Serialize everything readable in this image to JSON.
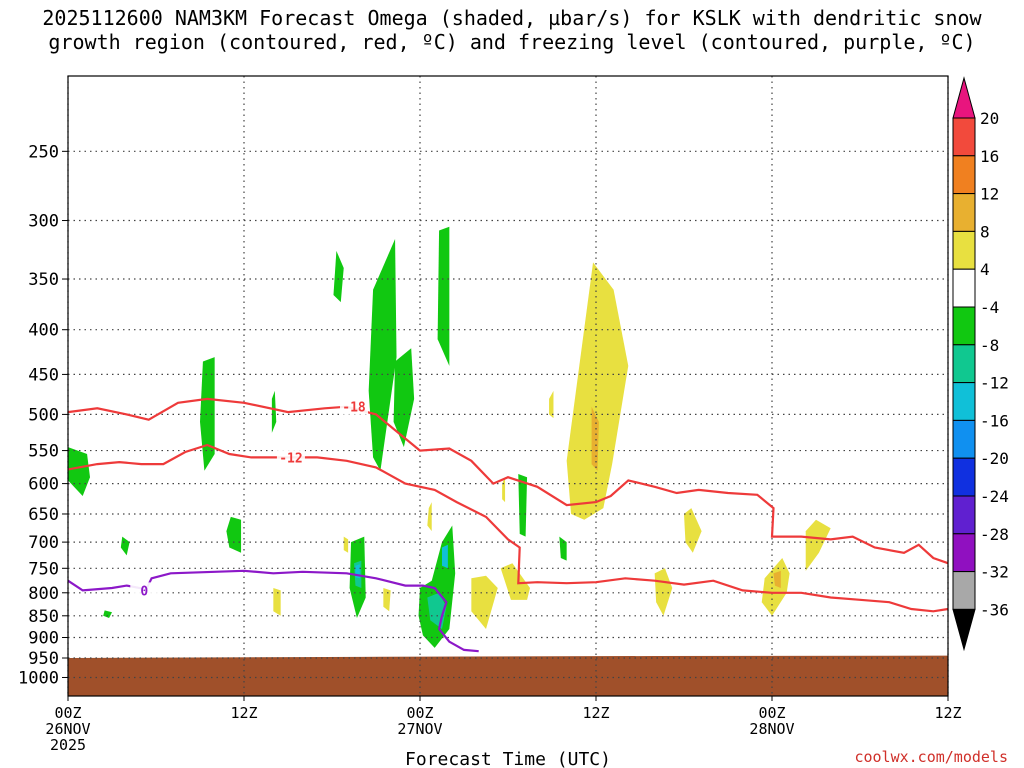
{
  "title": {
    "line1": "2025112600 NAM3KM Forecast Omega (shaded, µbar/s) for KSLK with dendritic snow",
    "line2": "growth region (contoured, red, ºC) and freezing level (contoured, purple, ºC)"
  },
  "credit": "coolwx.com/models",
  "chart_data": {
    "type": "heatmap",
    "title": "2025112600 NAM3KM Forecast Omega (shaded, µbar/s) for KSLK with dendritic snow growth region (contoured, red, ºC) and freezing level (contoured, purple, ºC)",
    "xlabel": "Forecast Time (UTC)",
    "ylabel": "",
    "y_scale": "log-pressure (hPa, inverted)",
    "xlim": [
      0,
      60
    ],
    "ylim": [
      1050,
      205
    ],
    "grid": true,
    "x_ticks": [
      {
        "x": 0,
        "label": "00Z",
        "sub1": "26NOV",
        "sub2": "2025"
      },
      {
        "x": 12,
        "label": "12Z",
        "sub1": "",
        "sub2": ""
      },
      {
        "x": 24,
        "label": "00Z",
        "sub1": "27NOV",
        "sub2": ""
      },
      {
        "x": 36,
        "label": "12Z",
        "sub1": "",
        "sub2": ""
      },
      {
        "x": 48,
        "label": "00Z",
        "sub1": "28NOV",
        "sub2": ""
      },
      {
        "x": 60,
        "label": "12Z",
        "sub1": "",
        "sub2": ""
      }
    ],
    "y_ticks": [
      250,
      300,
      350,
      400,
      450,
      500,
      550,
      600,
      650,
      700,
      750,
      800,
      850,
      900,
      950,
      1000
    ],
    "colorbar": {
      "labels": [
        "20",
        "16",
        "12",
        "8",
        "4",
        "-4",
        "-8",
        "-12",
        "-16",
        "-20",
        "-24",
        "-28",
        "-32",
        "-36"
      ],
      "colors": [
        "#e8157e",
        "#f24a3c",
        "#f08020",
        "#e8b030",
        "#e8e040",
        "#ffffff",
        "#11c811",
        "#10c890",
        "#10c0d8",
        "#1090f0",
        "#1030e0",
        "#6020d0",
        "#9010c0",
        "#a8a8a8",
        "#000000"
      ]
    },
    "terrain": {
      "color": "#a0502a",
      "surface_hpa": [
        {
          "x": 0,
          "p": 950
        },
        {
          "x": 20,
          "p": 947
        },
        {
          "x": 40,
          "p": 945
        },
        {
          "x": 60,
          "p": 944
        }
      ]
    },
    "omega_regions": [
      {
        "color": "#11c811",
        "points": [
          [
            0,
            545
          ],
          [
            1.3,
            555
          ],
          [
            1.5,
            590
          ],
          [
            1,
            620
          ],
          [
            0,
            595
          ]
        ]
      },
      {
        "color": "#11c811",
        "points": [
          [
            3.7,
            690
          ],
          [
            4.2,
            700
          ],
          [
            4,
            725
          ],
          [
            3.6,
            710
          ]
        ]
      },
      {
        "color": "#11c811",
        "points": [
          [
            2.5,
            838
          ],
          [
            3,
            842
          ],
          [
            2.8,
            855
          ],
          [
            2.4,
            850
          ]
        ]
      },
      {
        "color": "#11c811",
        "points": [
          [
            9.2,
            435
          ],
          [
            10,
            430
          ],
          [
            10,
            555
          ],
          [
            9.3,
            580
          ],
          [
            9,
            510
          ]
        ]
      },
      {
        "color": "#11c811",
        "points": [
          [
            11.1,
            655
          ],
          [
            11.8,
            660
          ],
          [
            11.8,
            720
          ],
          [
            11,
            710
          ],
          [
            10.8,
            680
          ]
        ]
      },
      {
        "color": "#11c811",
        "points": [
          [
            13.9,
            480
          ],
          [
            14.1,
            470
          ],
          [
            14.2,
            510
          ],
          [
            13.9,
            525
          ]
        ]
      },
      {
        "color": "#11c811",
        "points": [
          [
            18.3,
            325
          ],
          [
            18.8,
            340
          ],
          [
            18.6,
            372
          ],
          [
            18.1,
            365
          ]
        ]
      },
      {
        "color": "#11c811",
        "points": [
          [
            20.8,
            360
          ],
          [
            22.3,
            315
          ],
          [
            22.4,
            430
          ],
          [
            21.3,
            580
          ],
          [
            20.8,
            560
          ],
          [
            20.5,
            470
          ]
        ]
      },
      {
        "color": "#11c811",
        "points": [
          [
            22.3,
            435
          ],
          [
            23.4,
            420
          ],
          [
            23.6,
            480
          ],
          [
            22.9,
            545
          ],
          [
            22.2,
            510
          ]
        ]
      },
      {
        "color": "#11c811",
        "points": [
          [
            19.3,
            700
          ],
          [
            20.2,
            690
          ],
          [
            20.3,
            810
          ],
          [
            19.7,
            855
          ],
          [
            19.2,
            790
          ]
        ]
      },
      {
        "color": "#11c811",
        "points": [
          [
            25.3,
            308
          ],
          [
            26.0,
            305
          ],
          [
            26,
            440
          ],
          [
            25.2,
            410
          ]
        ]
      },
      {
        "color": "#11c811",
        "points": [
          [
            33.5,
            690
          ],
          [
            34,
            700
          ],
          [
            34,
            735
          ],
          [
            33.6,
            730
          ]
        ]
      },
      {
        "color": "#11c811",
        "points": [
          [
            24,
            790
          ],
          [
            24.8,
            775
          ],
          [
            25.5,
            700
          ],
          [
            26.2,
            670
          ],
          [
            26.4,
            760
          ],
          [
            26,
            880
          ],
          [
            25,
            925
          ],
          [
            24.2,
            895
          ],
          [
            23.9,
            850
          ]
        ]
      },
      {
        "color": "#11c811",
        "points": [
          [
            30.7,
            585
          ],
          [
            31.3,
            590
          ],
          [
            31.2,
            690
          ],
          [
            30.8,
            685
          ]
        ]
      },
      {
        "color": "#10c890",
        "points": [
          [
            24.5,
            810
          ],
          [
            25.3,
            800
          ],
          [
            25.8,
            830
          ],
          [
            25.5,
            880
          ],
          [
            24.7,
            860
          ]
        ]
      },
      {
        "color": "#10c890",
        "points": [
          [
            19.5,
            740
          ],
          [
            20.0,
            735
          ],
          [
            20.0,
            790
          ],
          [
            19.6,
            785
          ]
        ]
      },
      {
        "color": "#10c0d8",
        "points": [
          [
            19.6,
            745
          ],
          [
            19.9,
            742
          ],
          [
            19.9,
            770
          ],
          [
            19.6,
            768
          ]
        ]
      },
      {
        "color": "#10c0d8",
        "points": [
          [
            25.5,
            710
          ],
          [
            25.9,
            705
          ],
          [
            25.9,
            750
          ],
          [
            25.5,
            745
          ]
        ]
      },
      {
        "color": "#e8e040",
        "points": [
          [
            34,
            565
          ],
          [
            35.8,
            335
          ],
          [
            37.2,
            360
          ],
          [
            38.2,
            440
          ],
          [
            37.1,
            570
          ],
          [
            36.5,
            640
          ],
          [
            35.2,
            660
          ],
          [
            34.3,
            650
          ]
        ]
      },
      {
        "color": "#e8b030",
        "points": [
          [
            35.7,
            490
          ],
          [
            36.2,
            510
          ],
          [
            36.1,
            580
          ],
          [
            35.7,
            570
          ]
        ]
      },
      {
        "color": "#e8e040",
        "points": [
          [
            32.8,
            480
          ],
          [
            33.1,
            470
          ],
          [
            33.1,
            505
          ],
          [
            32.8,
            500
          ]
        ]
      },
      {
        "color": "#e8e040",
        "points": [
          [
            29.6,
            600
          ],
          [
            29.8,
            590
          ],
          [
            29.8,
            630
          ],
          [
            29.6,
            625
          ]
        ]
      },
      {
        "color": "#e8e040",
        "points": [
          [
            24.6,
            640
          ],
          [
            24.8,
            630
          ],
          [
            24.8,
            680
          ],
          [
            24.5,
            670
          ]
        ]
      },
      {
        "color": "#e8e040",
        "points": [
          [
            27.5,
            770
          ],
          [
            28.5,
            765
          ],
          [
            29.3,
            790
          ],
          [
            28.5,
            880
          ],
          [
            27.5,
            840
          ]
        ]
      },
      {
        "color": "#e8e040",
        "points": [
          [
            29.5,
            750
          ],
          [
            30.3,
            740
          ],
          [
            31.5,
            790
          ],
          [
            31.3,
            815
          ],
          [
            30.2,
            815
          ]
        ]
      },
      {
        "color": "#e8e040",
        "points": [
          [
            42,
            650
          ],
          [
            42.5,
            640
          ],
          [
            43.2,
            680
          ],
          [
            42.6,
            720
          ],
          [
            42.1,
            700
          ]
        ]
      },
      {
        "color": "#e8e040",
        "points": [
          [
            40,
            760
          ],
          [
            40.7,
            750
          ],
          [
            41.2,
            790
          ],
          [
            40.6,
            850
          ],
          [
            40.1,
            820
          ]
        ]
      },
      {
        "color": "#e8e040",
        "points": [
          [
            47.5,
            770
          ],
          [
            48.7,
            730
          ],
          [
            49.2,
            760
          ],
          [
            49.0,
            800
          ],
          [
            48.0,
            850
          ],
          [
            47.3,
            820
          ]
        ]
      },
      {
        "color": "#e8b030",
        "points": [
          [
            48.1,
            760
          ],
          [
            48.6,
            755
          ],
          [
            48.6,
            790
          ],
          [
            48.2,
            785
          ]
        ]
      },
      {
        "color": "#e8e040",
        "points": [
          [
            50.3,
            680
          ],
          [
            51,
            660
          ],
          [
            52,
            675
          ],
          [
            51.2,
            720
          ],
          [
            50.3,
            755
          ]
        ]
      },
      {
        "color": "#e8e040",
        "points": [
          [
            14.0,
            790
          ],
          [
            14.5,
            795
          ],
          [
            14.5,
            850
          ],
          [
            14.0,
            840
          ]
        ]
      },
      {
        "color": "#e8e040",
        "points": [
          [
            21.5,
            790
          ],
          [
            22.0,
            795
          ],
          [
            21.9,
            840
          ],
          [
            21.5,
            830
          ]
        ]
      },
      {
        "color": "#e8e040",
        "points": [
          [
            18.8,
            690
          ],
          [
            19.1,
            695
          ],
          [
            19.1,
            720
          ],
          [
            18.8,
            715
          ]
        ]
      }
    ],
    "dgz_contours": [
      {
        "label": "-18",
        "label_x": 19.5,
        "points": [
          [
            0,
            497
          ],
          [
            2,
            492
          ],
          [
            4,
            500
          ],
          [
            5.5,
            507
          ],
          [
            7.5,
            485
          ],
          [
            9.5,
            480
          ],
          [
            12,
            485
          ],
          [
            15,
            497
          ],
          [
            17.5,
            492
          ],
          [
            19,
            490
          ],
          [
            21,
            500
          ],
          [
            24,
            550
          ],
          [
            26,
            547
          ],
          [
            27.5,
            565
          ],
          [
            29,
            600
          ],
          [
            30,
            590
          ],
          [
            32,
            605
          ],
          [
            34,
            635
          ],
          [
            36,
            630
          ],
          [
            37,
            620
          ],
          [
            38.2,
            595
          ],
          [
            40,
            605
          ],
          [
            41.5,
            615
          ],
          [
            43,
            610
          ],
          [
            45,
            615
          ],
          [
            47,
            618
          ],
          [
            48.1,
            640
          ],
          [
            48,
            690
          ],
          [
            50,
            690
          ],
          [
            52,
            695
          ],
          [
            53.5,
            690
          ],
          [
            55,
            710
          ],
          [
            57,
            720
          ],
          [
            58,
            705
          ],
          [
            59,
            730
          ],
          [
            60,
            740
          ]
        ]
      },
      {
        "label": "-12",
        "label_x": 15.2,
        "points": [
          [
            0,
            578
          ],
          [
            2,
            570
          ],
          [
            3.5,
            567
          ],
          [
            5,
            570
          ],
          [
            6.5,
            570
          ],
          [
            8,
            552
          ],
          [
            9.5,
            542
          ],
          [
            11,
            555
          ],
          [
            12.5,
            560
          ],
          [
            14,
            560
          ],
          [
            17,
            560
          ],
          [
            19,
            565
          ],
          [
            21,
            575
          ],
          [
            23,
            600
          ],
          [
            25,
            610
          ],
          [
            26.5,
            630
          ],
          [
            28.5,
            655
          ],
          [
            30,
            695
          ],
          [
            30.8,
            710
          ],
          [
            30.7,
            780
          ],
          [
            32,
            778
          ],
          [
            34,
            780
          ],
          [
            36,
            778
          ],
          [
            38,
            770
          ],
          [
            40,
            775
          ],
          [
            42,
            783
          ],
          [
            44,
            775
          ],
          [
            46,
            795
          ],
          [
            48,
            800
          ],
          [
            50,
            800
          ],
          [
            52,
            810
          ],
          [
            54,
            815
          ],
          [
            56,
            820
          ],
          [
            57.5,
            835
          ],
          [
            59,
            840
          ],
          [
            60,
            835
          ]
        ]
      }
    ],
    "freezing_contour": {
      "label": "0",
      "label_x": 5.2,
      "points": [
        [
          0,
          775
        ],
        [
          1,
          795
        ],
        [
          3,
          790
        ],
        [
          4,
          785
        ],
        [
          4.9,
          790
        ],
        [
          5.3,
          795
        ],
        [
          5.7,
          770
        ],
        [
          7,
          760
        ],
        [
          9,
          758
        ],
        [
          12,
          755
        ],
        [
          14,
          760
        ],
        [
          16,
          757
        ],
        [
          19,
          760
        ],
        [
          21,
          770
        ],
        [
          23,
          785
        ],
        [
          24.2,
          785
        ],
        [
          25,
          790
        ],
        [
          25.8,
          820
        ],
        [
          25.5,
          850
        ],
        [
          25.3,
          880
        ],
        [
          26,
          910
        ],
        [
          27,
          930
        ],
        [
          28,
          933
        ]
      ]
    }
  }
}
